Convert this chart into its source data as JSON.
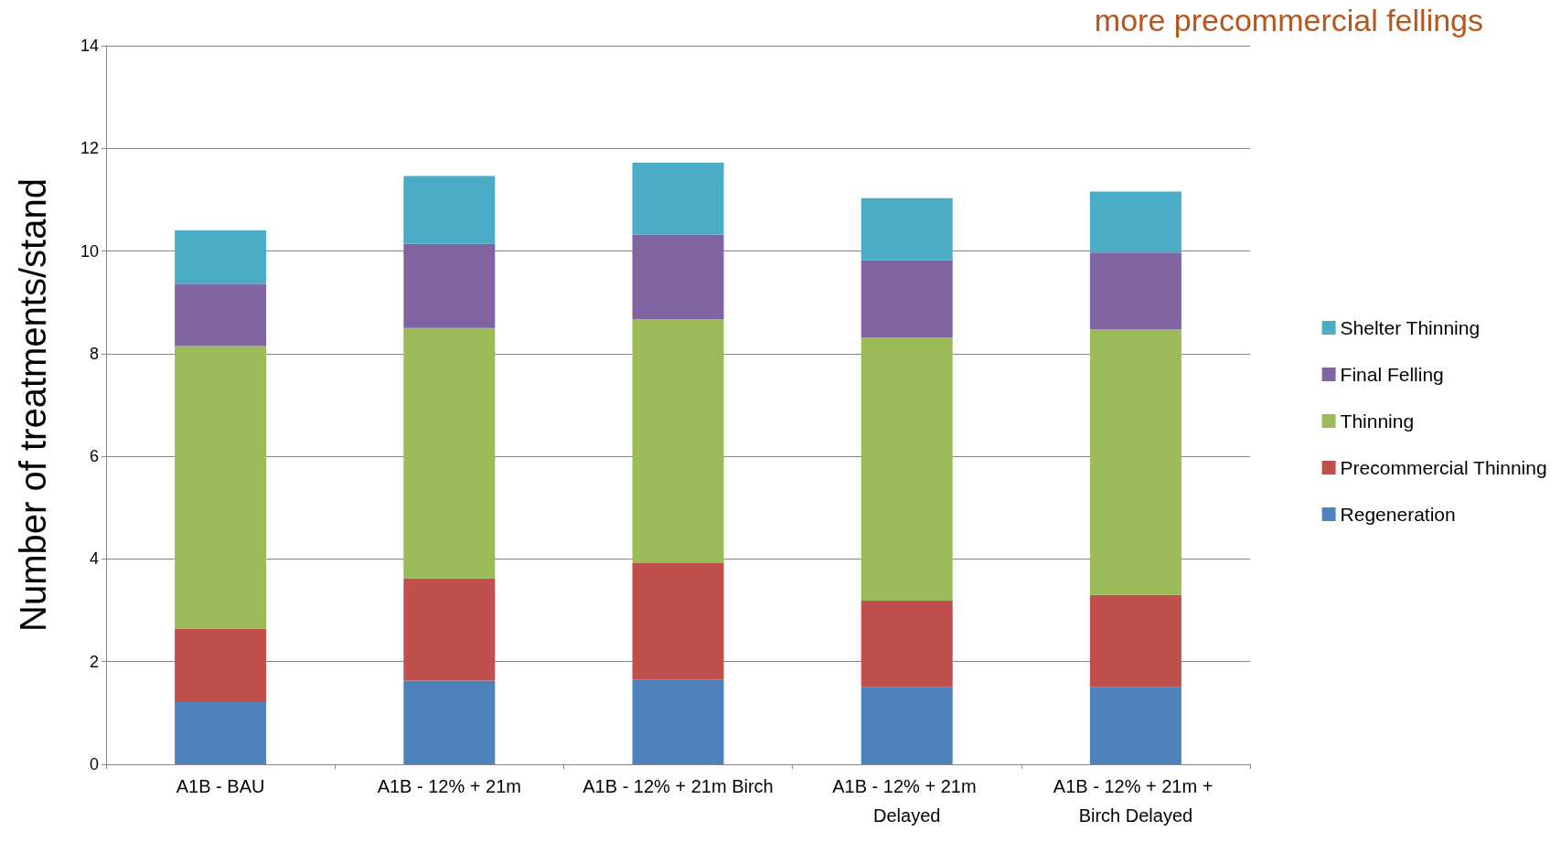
{
  "chart_data": {
    "type": "bar",
    "title": "more precommercial fellings",
    "ylabel": "Number of treatments/stand",
    "stacked": true,
    "grid": "y",
    "legend": "right",
    "categories": [
      "A1B - BAU",
      "A1B - 12% + 21m",
      "A1B - 12% + 21m Birch",
      "A1B - 12% + 21m Delayed",
      "A1B - 12% + 21m + Birch Delayed"
    ],
    "ylim": [
      0,
      14
    ],
    "yticks": [
      0,
      2,
      4,
      6,
      8,
      10,
      12,
      14
    ],
    "series": [
      {
        "name": "Regeneration",
        "color": "#4f81bd",
        "values": [
          1.21,
          1.63,
          1.65,
          1.5,
          1.5
        ]
      },
      {
        "name": "Precommercial Thinning",
        "color": "#c0504d",
        "values": [
          1.43,
          1.99,
          2.27,
          1.69,
          1.8
        ]
      },
      {
        "name": "Thinning",
        "color": "#9bbb59",
        "values": [
          5.51,
          4.88,
          4.75,
          5.13,
          5.17
        ]
      },
      {
        "name": "Final Felling",
        "color": "#8064a2",
        "values": [
          1.21,
          1.64,
          1.65,
          1.5,
          1.5
        ]
      },
      {
        "name": "Shelter Thinning",
        "color": "#4bacc6",
        "values": [
          1.04,
          1.32,
          1.4,
          1.21,
          1.19
        ]
      }
    ]
  }
}
